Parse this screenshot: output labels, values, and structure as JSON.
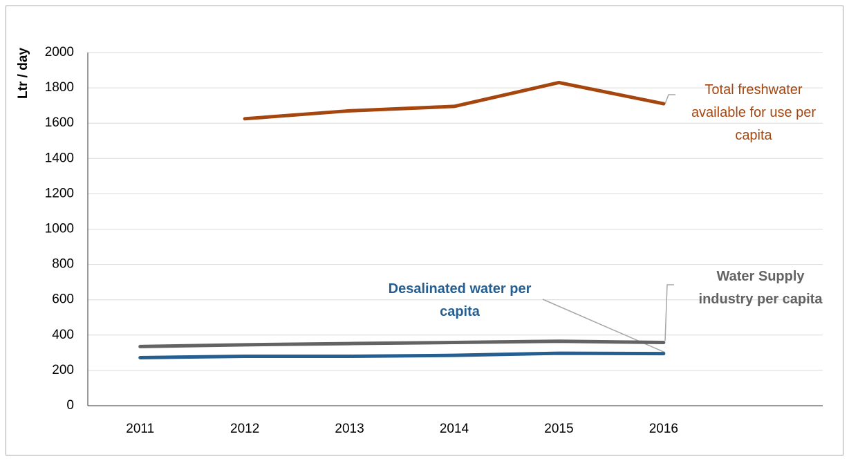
{
  "chart_data": {
    "type": "line",
    "y_label": "Ltr / day",
    "categories": [
      "2011",
      "2012",
      "2013",
      "2014",
      "2015",
      "2016",
      null
    ],
    "series": [
      {
        "name": "Total freshwater available for use per capita",
        "color": "#a5460f",
        "values": [
          null,
          1625,
          1670,
          1695,
          1830,
          1710,
          null
        ]
      },
      {
        "name": "Water Supply industry per capita",
        "color": "#636363",
        "values": [
          335,
          345,
          352,
          358,
          365,
          358,
          null
        ]
      },
      {
        "name": "Desalinated water per capita",
        "color": "#255e91",
        "values": [
          272,
          280,
          280,
          285,
          297,
          295,
          null
        ]
      }
    ],
    "ylim": [
      0,
      2000
    ],
    "yticks": [
      0,
      200,
      400,
      600,
      800,
      1000,
      1200,
      1400,
      1600,
      1800,
      2000
    ],
    "grid": true
  }
}
